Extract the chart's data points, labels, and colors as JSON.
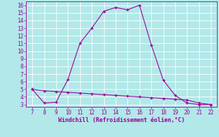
{
  "x": [
    7,
    8,
    9,
    10,
    11,
    12,
    13,
    14,
    15,
    16,
    17,
    18,
    19,
    20,
    21,
    22
  ],
  "y_main": [
    5,
    3.2,
    3.3,
    6.3,
    11,
    13,
    15.2,
    15.7,
    15.4,
    16,
    10.8,
    6.2,
    4.2,
    3.2,
    3.0,
    3.0
  ],
  "y_flat": [
    5,
    4.8,
    4.7,
    4.6,
    4.5,
    4.4,
    4.3,
    4.2,
    4.1,
    4.0,
    3.9,
    3.8,
    3.7,
    3.6,
    3.2,
    3.0
  ],
  "line_color": "#990099",
  "bg_color": "#b2e8e8",
  "grid_color": "#ffffff",
  "xlabel": "Windchill (Refroidissement éolien,°C)",
  "xlim": [
    6.5,
    22.5
  ],
  "ylim": [
    2.7,
    16.5
  ],
  "xticks": [
    7,
    8,
    9,
    10,
    11,
    12,
    13,
    14,
    15,
    16,
    17,
    18,
    19,
    20,
    21,
    22
  ],
  "yticks": [
    3,
    4,
    5,
    6,
    7,
    8,
    9,
    10,
    11,
    12,
    13,
    14,
    15,
    16
  ],
  "marker": "+",
  "tick_fontsize": 5.5,
  "xlabel_fontsize": 6.0
}
